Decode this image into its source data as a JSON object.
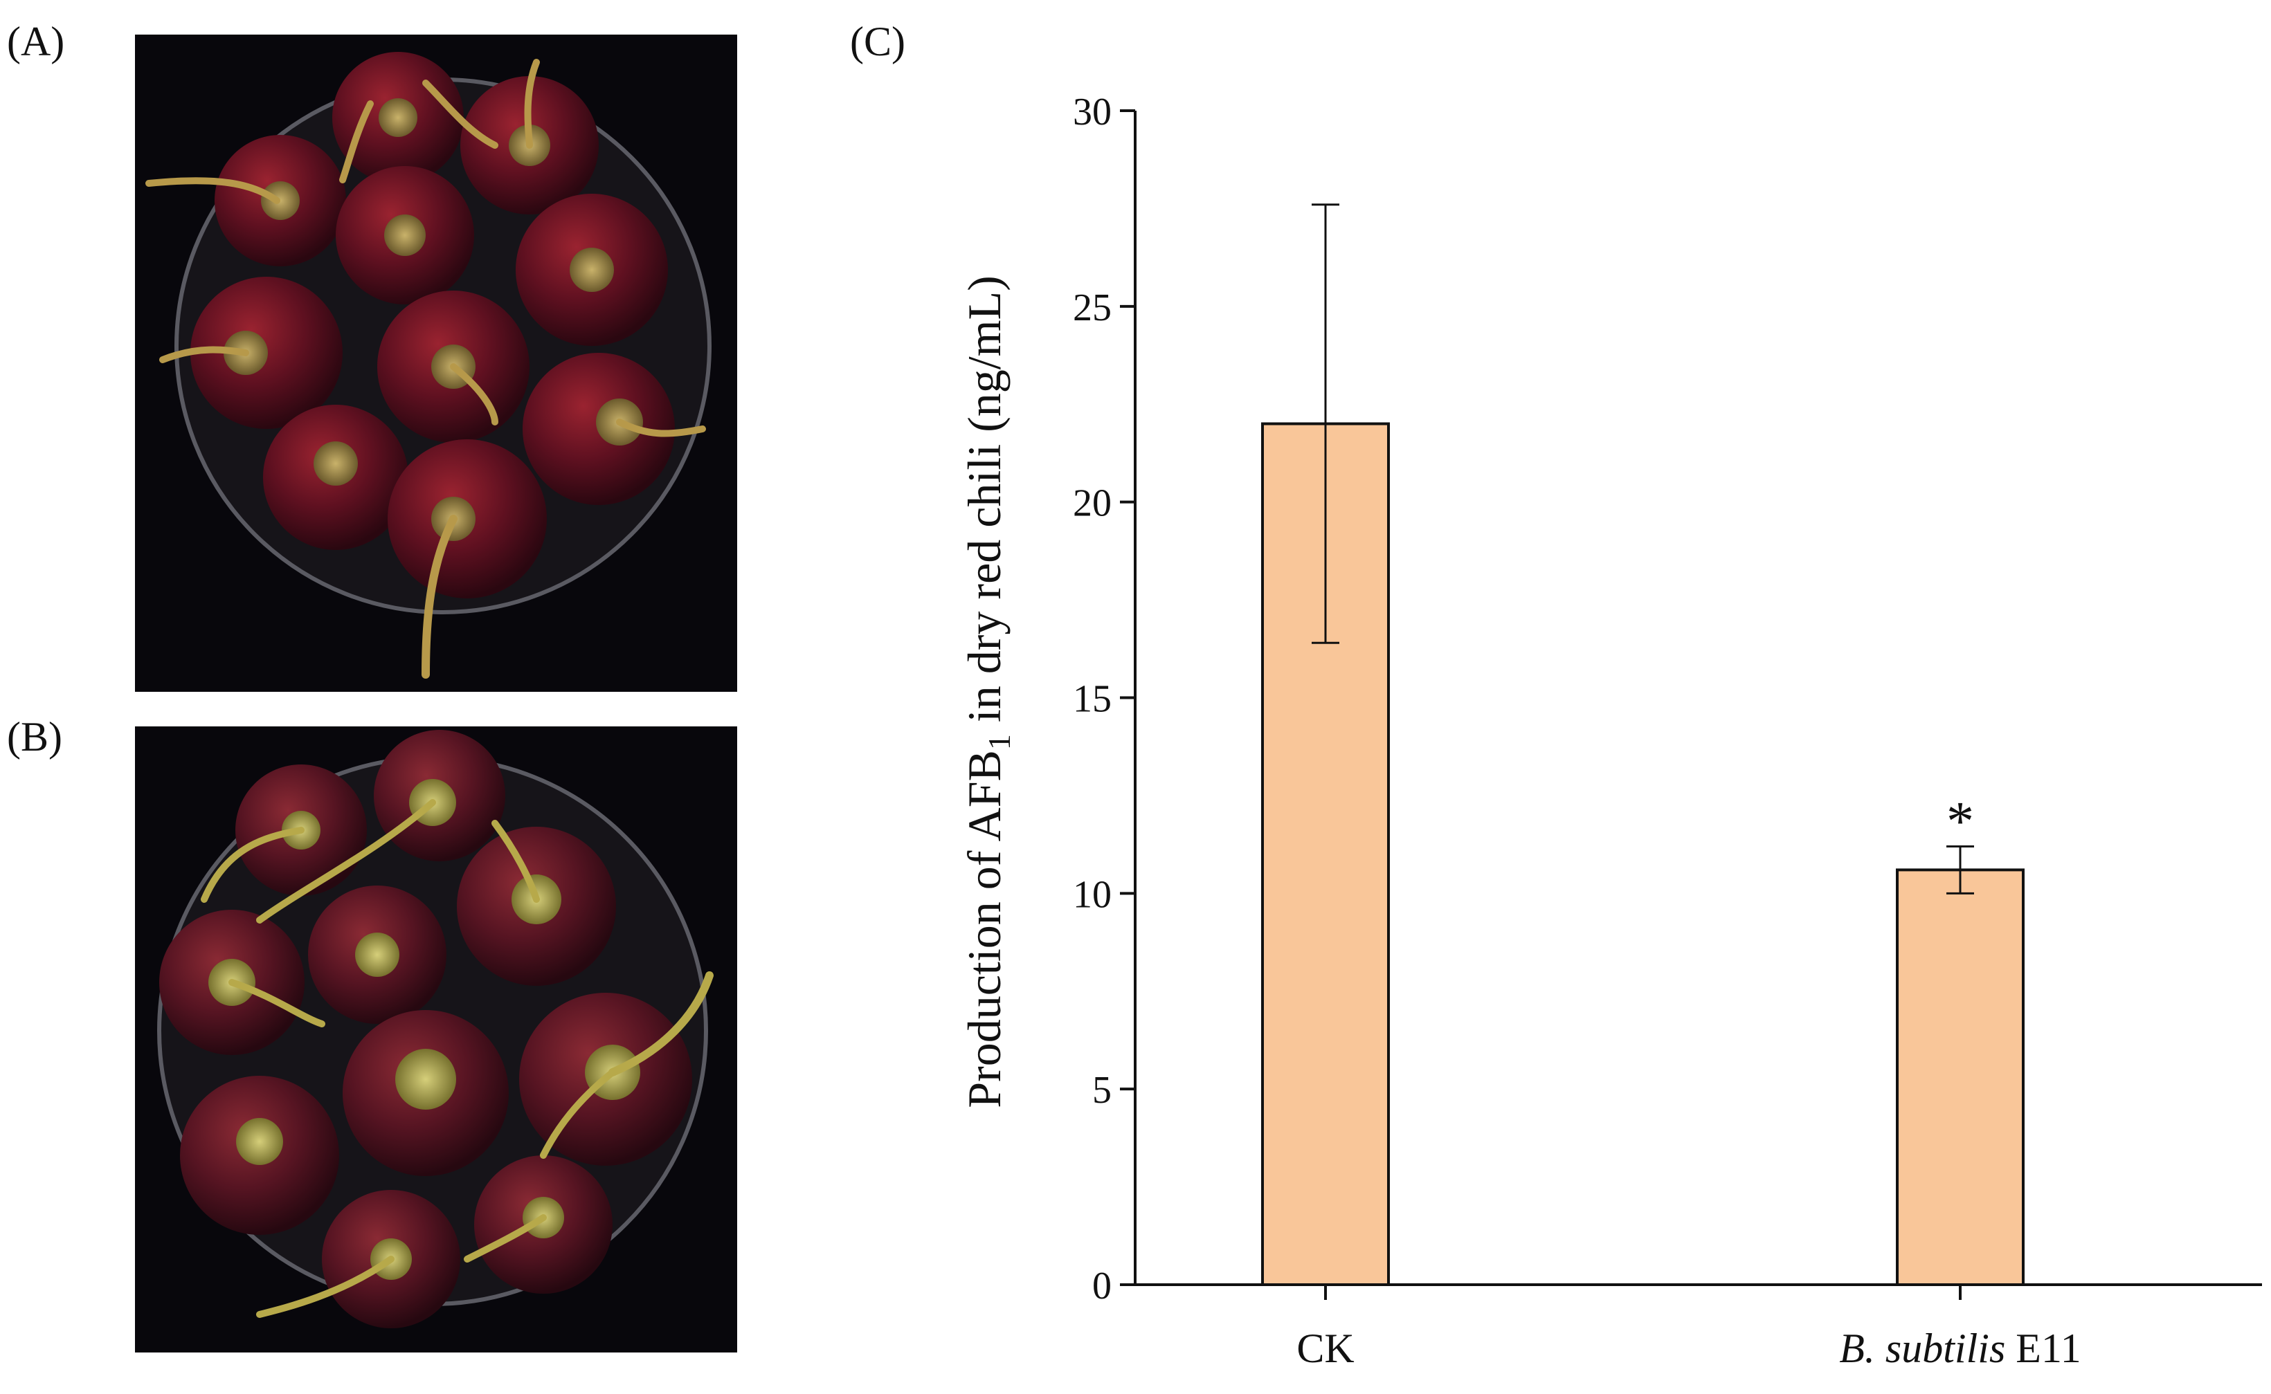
{
  "panels": {
    "a_label": "(A)",
    "b_label": "(B)",
    "c_label": "(C)"
  },
  "chart_data": {
    "type": "bar",
    "categories": [
      {
        "name": "CK",
        "parts": [
          {
            "text": "CK",
            "italic": false
          }
        ]
      },
      {
        "name": "B. subtilis E11",
        "parts": [
          {
            "text": "B. subtilis",
            "italic": true
          },
          {
            "text": " E11",
            "italic": false
          }
        ]
      }
    ],
    "values": [
      22.0,
      10.6
    ],
    "errors": [
      5.6,
      0.6
    ],
    "annotations": [
      "",
      "*"
    ],
    "ylabel": {
      "before": "Production of AFB",
      "sub": "1",
      "after": " in dry red chili (ng/mL)"
    },
    "ylim": [
      0,
      30
    ],
    "yticks": [
      0,
      5,
      10,
      15,
      20,
      25,
      30
    ],
    "bar_color": "#F9C699",
    "grid": false
  }
}
